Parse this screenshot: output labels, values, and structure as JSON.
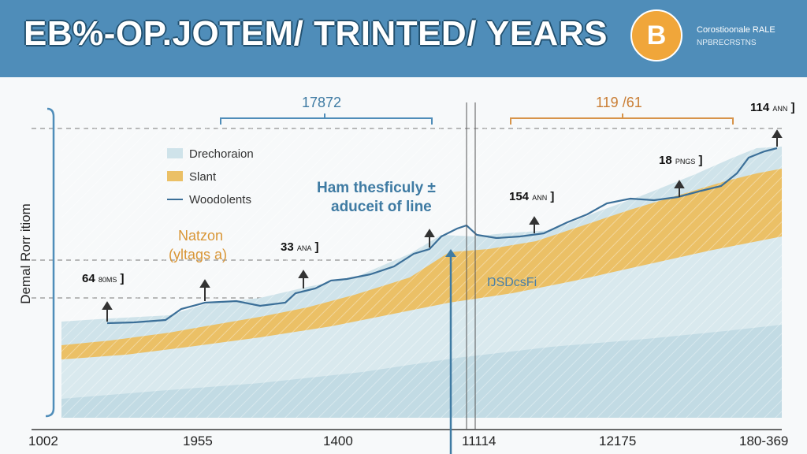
{
  "header": {
    "title": "EB%-OP.JOTEM/ TRINTED/ YEARS",
    "coin_symbol": "B",
    "corner_line1": "Corostioonale RALE",
    "corner_line2": "NPBRECRSTNS"
  },
  "colors": {
    "header": "#4f8db9",
    "light_area": "#cfe3ea",
    "orange_area": "#ebc066",
    "line": "#3b6f98",
    "bracket_left": "#4f8db9",
    "bracket_right": "#d7944a"
  },
  "chart_data": {
    "type": "area",
    "ylabel": "Demal Rorr itiom",
    "x_ticks": [
      "1002",
      "1955",
      "1400",
      "11114",
      "12175",
      "180-369"
    ],
    "legend": [
      {
        "label": "Drechoraion",
        "kind": "area",
        "color": "#cfe3ea"
      },
      {
        "label": "Slant",
        "kind": "area",
        "color": "#ebc066"
      },
      {
        "label": "Woodolents",
        "kind": "line",
        "color": "#3b6f98"
      }
    ],
    "brackets": [
      {
        "label": "17872",
        "color": "#4f8db9"
      },
      {
        "label": "119 /61",
        "color": "#d7944a"
      }
    ],
    "annotations": {
      "center_line1": "Ham thesficuly ±",
      "center_line2": "aduceit of line",
      "left_line1": "Natzon",
      "left_line2": "(yltags a)",
      "right_mark": "ŊSDcsFi"
    },
    "callouts": [
      {
        "value": "64",
        "unit": "80MS",
        "suffix": "]"
      },
      {
        "value": "33",
        "unit": "ANA",
        "suffix": "]"
      },
      {
        "value": "154",
        "unit": "ANN",
        "suffix": "]"
      },
      {
        "value": "18",
        "unit": "PNGS",
        "suffix": "]"
      },
      {
        "value": "114",
        "unit": "ANN",
        "suffix": "]"
      }
    ],
    "series": [
      {
        "name": "Woodolents",
        "x_index": [
          0,
          1,
          2,
          3,
          4,
          5,
          6,
          7,
          8,
          9,
          10,
          11,
          12,
          13,
          14,
          15,
          16,
          17,
          18,
          19,
          20,
          21,
          22,
          23,
          24
        ],
        "values": [
          64,
          64,
          65,
          72,
          66,
          74,
          83,
          86,
          97,
          102,
          120,
          134,
          127,
          122,
          126,
          130,
          142,
          154,
          145,
          158,
          165,
          160,
          178,
          185,
          204
        ]
      }
    ],
    "grid": "dashed horizontal"
  }
}
